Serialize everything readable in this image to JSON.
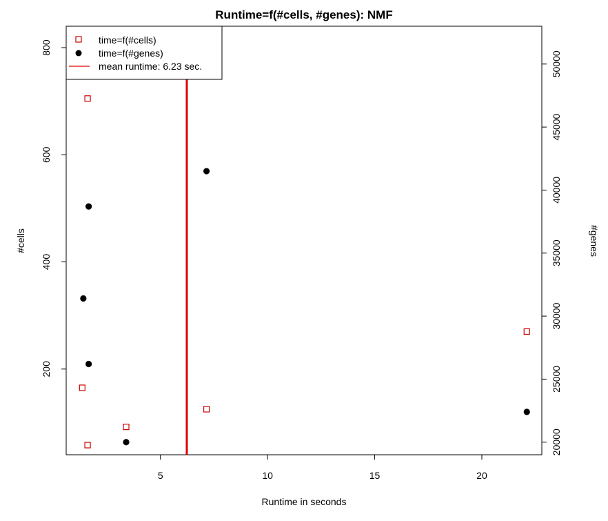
{
  "chart_data": {
    "type": "scatter",
    "title": "Runtime=f(#cells, #genes): NMF",
    "xlabel": "Runtime in seconds",
    "ylabel_left": "#cells",
    "ylabel_right": "#genes",
    "xlim": [
      0.6,
      22.8
    ],
    "ylim_left": [
      40,
      840
    ],
    "ylim_right": [
      19000,
      53000
    ],
    "xticks": [
      "5",
      "10",
      "15",
      "20"
    ],
    "xtick_values": [
      5,
      10,
      15,
      20
    ],
    "yticks_left": [
      "200",
      "400",
      "600",
      "800"
    ],
    "ytick_values_left": [
      200,
      400,
      600,
      800
    ],
    "yticks_right": [
      "20000",
      "25000",
      "30000",
      "35000",
      "40000",
      "45000",
      "50000"
    ],
    "ytick_values_right": [
      20000,
      25000,
      30000,
      35000,
      40000,
      45000,
      50000
    ],
    "series": [
      {
        "name": "time=f(#cells)",
        "axis": "left",
        "marker": "open-square",
        "color": "#cc0000",
        "points": [
          {
            "x": 1.6,
            "y": 705
          },
          {
            "x": 1.35,
            "y": 165
          },
          {
            "x": 1.6,
            "y": 58
          },
          {
            "x": 3.4,
            "y": 92
          },
          {
            "x": 7.15,
            "y": 125
          },
          {
            "x": 22.1,
            "y": 270
          }
        ]
      },
      {
        "name": "time=f(#genes)",
        "axis": "right",
        "marker": "filled-circle",
        "color": "#000000",
        "points": [
          {
            "x": 7.15,
            "y": 41500
          },
          {
            "x": 1.65,
            "y": 38700
          },
          {
            "x": 1.4,
            "y": 31400
          },
          {
            "x": 1.65,
            "y": 26200
          },
          {
            "x": 3.4,
            "y": 20000
          },
          {
            "x": 22.1,
            "y": 22400
          }
        ]
      }
    ],
    "vline": {
      "x": 6.23,
      "color": "#dd0000",
      "label": "mean runtime: 6.23 sec."
    },
    "legend": {
      "position": "top-left",
      "entries": [
        "time=f(#cells)",
        "time=f(#genes)",
        "mean runtime: 6.23 sec."
      ]
    },
    "grid": false
  }
}
